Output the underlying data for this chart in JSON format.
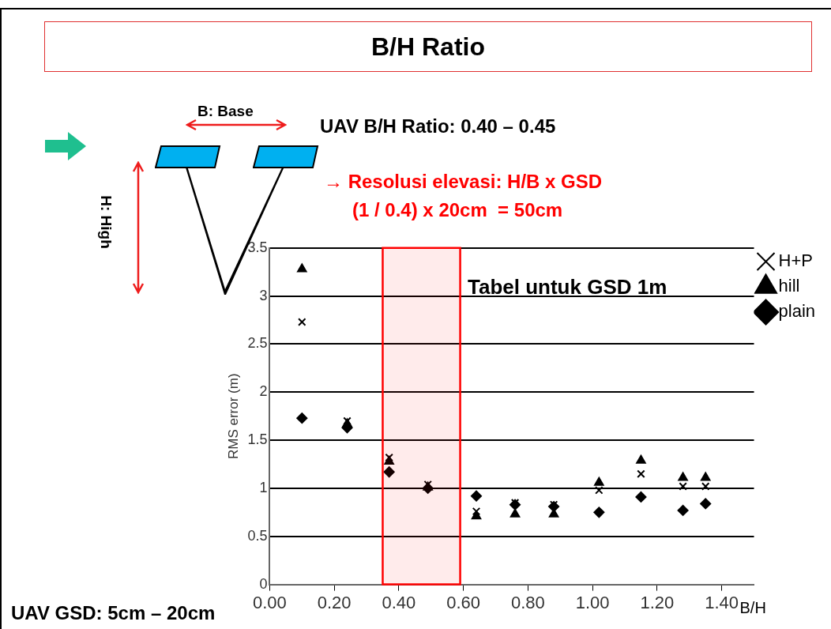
{
  "chart_data": {
    "type": "scatter",
    "title": "B/H Ratio",
    "xlabel": "B/H",
    "ylabel": "RMS error (m)",
    "annotations": [
      "B: Base",
      "H: High",
      "UAV B/H Ratio: 0.40 – 0.45",
      "→ Resolusi elevasi: H/B x GSD",
      "(1 / 0.4) x 20cm  = 50cm",
      "Tabel untuk GSD 1m",
      "UAV GSD: 5cm – 20cm"
    ],
    "x": [
      0.1,
      0.24,
      0.37,
      0.49,
      0.64,
      0.76,
      0.88,
      1.02,
      1.15,
      1.28,
      1.35
    ],
    "series": [
      {
        "name": "H+P",
        "color": "#000000",
        "marker": "cross",
        "values": [
          2.73,
          1.7,
          1.32,
          1.04,
          0.76,
          0.85,
          0.83,
          0.98,
          1.15,
          1.02,
          1.02
        ]
      },
      {
        "name": "hill",
        "color": "#000000",
        "marker": "triangle",
        "values": [
          3.28,
          1.67,
          1.28,
          1.01,
          0.71,
          0.73,
          0.73,
          1.06,
          1.29,
          1.11,
          1.11
        ]
      },
      {
        "name": "plain",
        "color": "#000000",
        "marker": "diamond",
        "values": [
          1.73,
          1.63,
          1.17,
          1.0,
          0.92,
          0.83,
          0.81,
          0.75,
          0.91,
          0.77,
          0.84
        ]
      }
    ],
    "bands": [
      {
        "axis": "x",
        "from": 0.35,
        "to": 0.59,
        "color": "#ff0000"
      }
    ],
    "xlim": [
      0,
      1.5
    ],
    "xticks": [
      {
        "value": 0,
        "label": "0.00"
      },
      {
        "value": 0.2,
        "label": "0.20"
      },
      {
        "value": 0.4,
        "label": "0.40"
      },
      {
        "value": 0.6,
        "label": "0.60"
      },
      {
        "value": 0.8,
        "label": "0.80"
      },
      {
        "value": 1,
        "label": "1.00"
      },
      {
        "value": 1.2,
        "label": "1.20"
      },
      {
        "value": 1.4,
        "label": "1.40"
      }
    ],
    "ylim": [
      0,
      3.5
    ],
    "yticks": [
      0,
      0.5,
      1,
      1.5,
      2,
      2.5,
      3,
      3.5
    ],
    "grid": "y",
    "legend": "top right"
  }
}
